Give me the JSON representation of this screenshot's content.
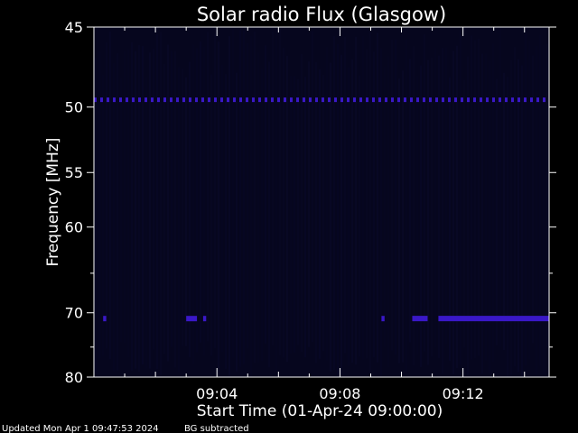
{
  "chart_data": {
    "type": "heatmap",
    "title": "Solar radio Flux (Glasgow)",
    "xlabel": "Start Time (01-Apr-24 09:00:00)",
    "ylabel": "Frequency [MHz]",
    "x_unit": "minutes after start time",
    "xlim": [
      0,
      14.8
    ],
    "ylim": [
      45,
      80
    ],
    "y_scale": "reciprocal",
    "x_ticks": [
      {
        "value": 4,
        "label": "09:04"
      },
      {
        "value": 8,
        "label": "09:08"
      },
      {
        "value": 12,
        "label": "09:12"
      }
    ],
    "y_ticks": [
      {
        "value": 45,
        "label": "45"
      },
      {
        "value": 50,
        "label": "50"
      },
      {
        "value": 55,
        "label": "55"
      },
      {
        "value": 60,
        "label": "60"
      },
      {
        "value": 70,
        "label": "70"
      },
      {
        "value": 80,
        "label": "80"
      }
    ],
    "colors": {
      "background": "#000000",
      "plot_background": "#06061e",
      "foreground": "#ffffff",
      "interference": "#3a18c8"
    },
    "bands": [
      {
        "freq": 49.5,
        "x_start": 0.0,
        "x_end": 14.8,
        "pattern": "dashed"
      },
      {
        "freq": 70.8,
        "x_start": 0.3,
        "x_end": 0.4,
        "pattern": "solid"
      },
      {
        "freq": 70.8,
        "x_start": 3.0,
        "x_end": 3.35,
        "pattern": "solid"
      },
      {
        "freq": 70.8,
        "x_start": 3.55,
        "x_end": 3.65,
        "pattern": "solid"
      },
      {
        "freq": 70.8,
        "x_start": 9.35,
        "x_end": 9.45,
        "pattern": "solid"
      },
      {
        "freq": 70.8,
        "x_start": 10.35,
        "x_end": 10.85,
        "pattern": "solid"
      },
      {
        "freq": 70.8,
        "x_start": 11.2,
        "x_end": 14.8,
        "pattern": "solid"
      }
    ]
  },
  "footer": {
    "updated": "Updated Mon Apr  1 09:47:53 2024",
    "note": "BG subtracted"
  }
}
